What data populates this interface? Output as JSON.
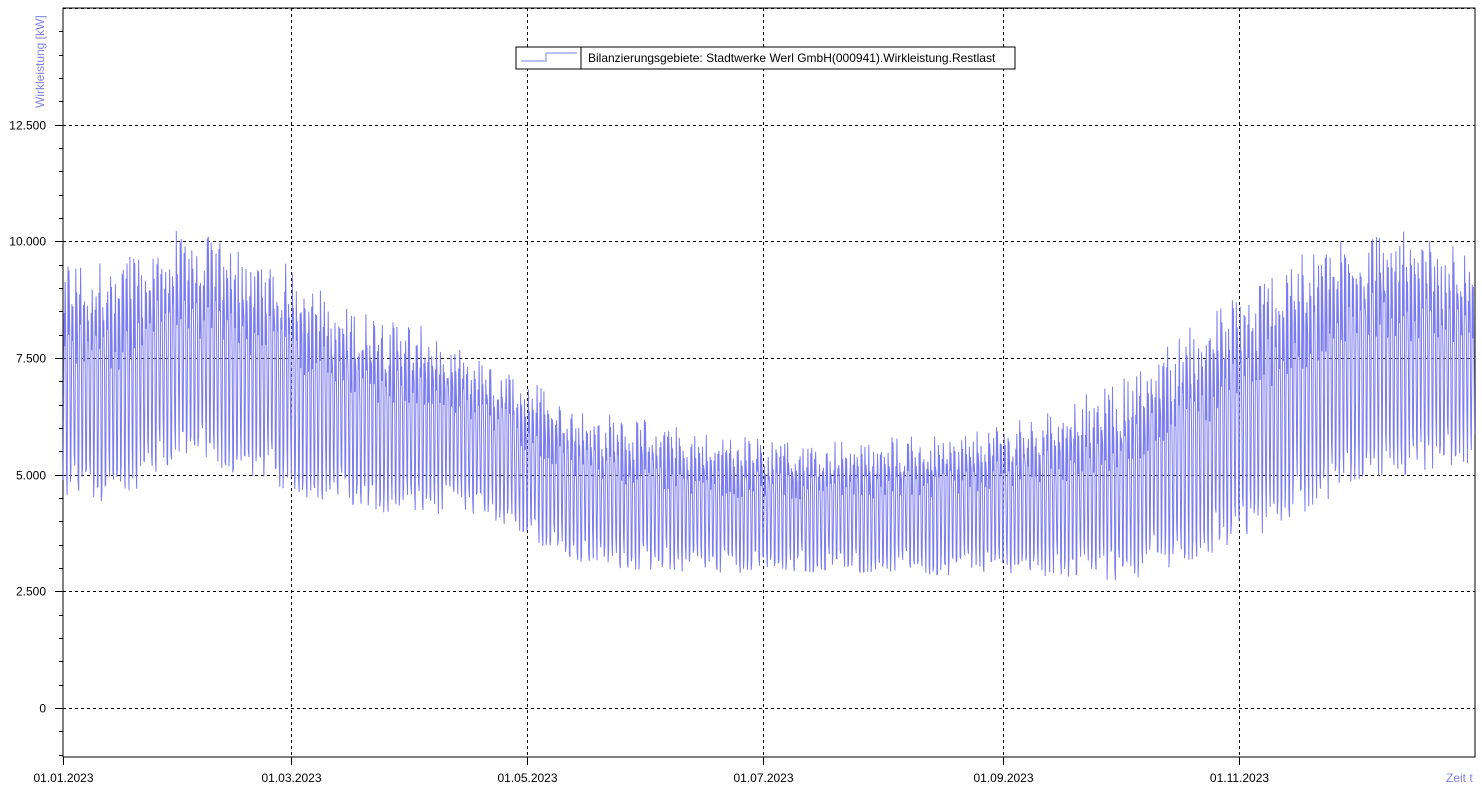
{
  "chart_data": {
    "type": "line",
    "title": "",
    "ylabel": "Wirkleistung [kW]",
    "xlabel": "Zeit t",
    "ylim": [
      -1050,
      15000
    ],
    "xlim": [
      "2023-01-01",
      "2024-01-01"
    ],
    "grid": true,
    "grid_style": "dotted",
    "legend_position": "top-center",
    "x_ticks": [
      "01.01.2023",
      "01.03.2023",
      "01.05.2023",
      "01.07.2023",
      "01.09.2023",
      "01.11.2023"
    ],
    "y_ticks": [
      "0",
      "2.500",
      "5.000",
      "7.500",
      "10.000",
      "12.500"
    ],
    "y_tick_values": [
      0,
      2500,
      5000,
      7500,
      10000,
      12500
    ],
    "series": [
      {
        "name": "Bilanzierungsgebiete: Stadtwerke Werl GmbH(000941).Wirkleistung.Restlast",
        "color": "#7b7bf0",
        "x": [
          "2023-01-15",
          "2023-02-01",
          "2023-02-15",
          "2023-03-01",
          "2023-03-15",
          "2023-04-01",
          "2023-04-15",
          "2023-05-01",
          "2023-05-15",
          "2023-06-01",
          "2023-06-15",
          "2023-07-01",
          "2023-07-15",
          "2023-08-01",
          "2023-08-15",
          "2023-09-01",
          "2023-09-15",
          "2023-10-01",
          "2023-10-15",
          "2023-11-01",
          "2023-11-15",
          "2023-12-01",
          "2023-12-15",
          "2023-12-31"
        ],
        "daily_min": [
          4400,
          5300,
          4900,
          4600,
          4300,
          4100,
          4200,
          3600,
          3100,
          2900,
          2900,
          2900,
          2900,
          2900,
          2800,
          2900,
          2800,
          2700,
          3000,
          3500,
          4000,
          4800,
          5000,
          5200
        ],
        "daily_max": [
          9600,
          10300,
          9900,
          9500,
          8600,
          8300,
          7700,
          7100,
          6400,
          6200,
          5900,
          5800,
          5700,
          5800,
          5900,
          6100,
          6500,
          7000,
          7900,
          8900,
          9700,
          10300,
          10200,
          9800
        ]
      }
    ]
  }
}
